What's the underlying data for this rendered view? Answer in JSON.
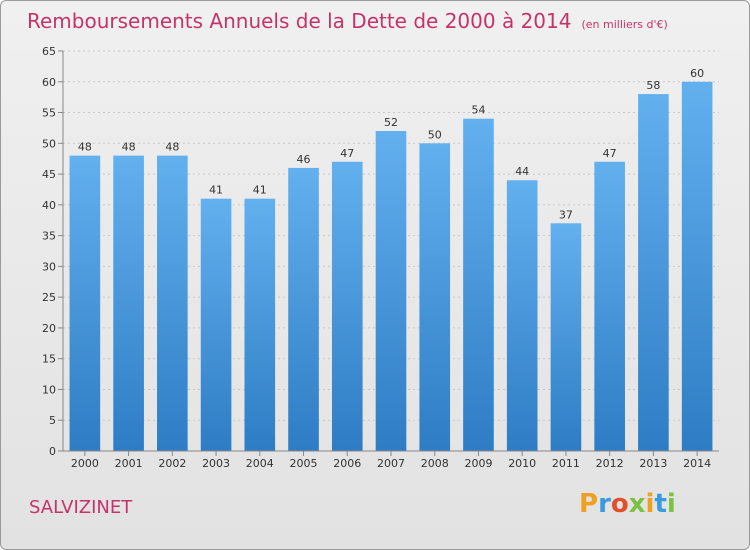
{
  "chart_data": {
    "type": "bar",
    "title": "Remboursements Annuels de la Dette de 2000 à 2014",
    "unit_label": "(en milliers d'€)",
    "categories": [
      "2000",
      "2001",
      "2002",
      "2003",
      "2004",
      "2005",
      "2006",
      "2007",
      "2008",
      "2009",
      "2010",
      "2011",
      "2012",
      "2013",
      "2014"
    ],
    "values": [
      48,
      48,
      48,
      41,
      41,
      46,
      47,
      52,
      50,
      54,
      44,
      37,
      47,
      58,
      60
    ],
    "yticks": [
      0,
      5,
      10,
      15,
      20,
      25,
      30,
      35,
      40,
      45,
      50,
      55,
      60,
      65
    ],
    "ylim": [
      0,
      65
    ],
    "grid": true,
    "xlabel": "",
    "ylabel": "",
    "bar_color": "#3d8fd6"
  },
  "footer": {
    "commune": "SALVIZINET",
    "brand": "Proxiti"
  },
  "colors": {
    "title": "#c4346a",
    "brand_letters": [
      "#f0a020",
      "#3a9be0",
      "#e0502a",
      "#7cc242",
      "#f0a020",
      "#3a9be0",
      "#7cc242"
    ]
  }
}
